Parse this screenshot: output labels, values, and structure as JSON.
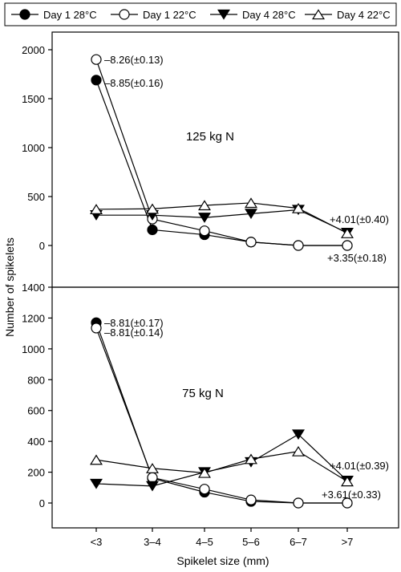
{
  "chart_data": {
    "type": "line",
    "ylabel": "Number of spikelets",
    "xlabel": "Spikelet size (mm)",
    "categories": [
      "<3",
      "3–4",
      "4–5",
      "5–6",
      "6–7",
      ">7"
    ],
    "legend": {
      "placement": "top",
      "entries": [
        {
          "name": "Day 1 28°C",
          "marker": "filled-circle"
        },
        {
          "name": "Day 1 22°C",
          "marker": "open-circle"
        },
        {
          "name": "Day 4 28°C",
          "marker": "filled-triangle-down"
        },
        {
          "name": "Day 4 22°C",
          "marker": "open-triangle-up"
        }
      ]
    },
    "panels": [
      {
        "label": "125 kg N",
        "ylim": [
          0,
          2000
        ],
        "yticks": [
          0,
          500,
          1000,
          1500,
          2000
        ],
        "series": [
          {
            "name": "Day 1 28°C",
            "values": [
              1690,
              160,
              110,
              35,
              0,
              0
            ]
          },
          {
            "name": "Day 1 22°C",
            "values": [
              1900,
              270,
              150,
              35,
              0,
              0
            ]
          },
          {
            "name": "Day 4 28°C",
            "values": [
              310,
              310,
              285,
              325,
              365,
              130
            ]
          },
          {
            "name": "Day 4 22°C",
            "values": [
              370,
              375,
              410,
              435,
              380,
              125
            ]
          }
        ],
        "annotations": [
          {
            "text": "–8.26(±0.13)",
            "series": "Day 1 22°C",
            "category": "<3"
          },
          {
            "text": "–8.85(±0.16)",
            "series": "Day 1 28°C",
            "category": "<3"
          },
          {
            "text": "+4.01(±0.40)",
            "series": "Day 4 22°C",
            "category": ">7"
          },
          {
            "text": "+3.35(±0.18)",
            "series": "Day 1 22°C",
            "category": ">7"
          }
        ]
      },
      {
        "label": "75 kg N",
        "ylim": [
          0,
          1400
        ],
        "yticks": [
          0,
          200,
          400,
          600,
          800,
          1000,
          1200,
          1400
        ],
        "series": [
          {
            "name": "Day 1 28°C",
            "values": [
              1170,
              160,
              70,
              10,
              0,
              0
            ]
          },
          {
            "name": "Day 1 22°C",
            "values": [
              1135,
              165,
              90,
              20,
              0,
              0
            ]
          },
          {
            "name": "Day 4 28°C",
            "values": [
              125,
              110,
              200,
              265,
              445,
              145
            ]
          },
          {
            "name": "Day 4 22°C",
            "values": [
              280,
              225,
              195,
              285,
              335,
              140
            ]
          }
        ],
        "annotations": [
          {
            "text": "–8.81(±0.17)",
            "series": "Day 1 28°C",
            "category": "<3"
          },
          {
            "text": "–8.81(±0.14)",
            "series": "Day 1 22°C",
            "category": "<3"
          },
          {
            "text": "+4.01(±0.39)",
            "series": "Day 4 22°C",
            "category": ">7"
          },
          {
            "text": "+3.61(±0.33)",
            "series": "Day 1 22°C",
            "category": ">7"
          }
        ]
      }
    ]
  }
}
